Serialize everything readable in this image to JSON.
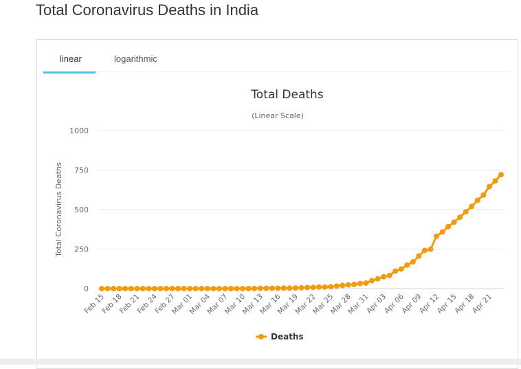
{
  "page_title": "Total Coronavirus Deaths in India",
  "tabs": [
    "linear",
    "logarithmic"
  ],
  "chart_data": {
    "type": "line",
    "title": "Total Deaths",
    "subtitle": "(Linear Scale)",
    "y_label": "Total Coronavirus Deaths",
    "categories": [
      "Feb 15",
      null,
      null,
      "Feb 18",
      null,
      null,
      "Feb 21",
      null,
      null,
      "Feb 24",
      null,
      null,
      "Feb 27",
      null,
      null,
      "Mar 01",
      null,
      null,
      "Mar 04",
      null,
      null,
      "Mar 07",
      null,
      null,
      "Mar 10",
      null,
      null,
      "Mar 13",
      null,
      null,
      "Mar 16",
      null,
      null,
      "Mar 19",
      null,
      null,
      "Mar 22",
      null,
      null,
      "Mar 25",
      null,
      null,
      "Mar 28",
      null,
      null,
      "Mar 31",
      null,
      null,
      "Apr 03",
      null,
      null,
      "Apr 06",
      null,
      null,
      "Apr 09",
      null,
      null,
      "Apr 12",
      null,
      null,
      "Apr 15",
      null,
      null,
      "Apr 18",
      null,
      null,
      "Apr 21",
      null,
      null
    ],
    "series": [
      {
        "name": "Deaths",
        "color": "#f59a0c",
        "values": [
          0,
          0,
          0,
          0,
          0,
          0,
          0,
          0,
          0,
          0,
          0,
          0,
          0,
          0,
          0,
          0,
          0,
          0,
          0,
          0,
          0,
          0,
          0,
          0,
          0,
          0,
          1,
          2,
          2,
          2,
          2,
          3,
          3,
          4,
          5,
          7,
          8,
          10,
          10,
          12,
          16,
          20,
          24,
          27,
          32,
          35,
          50,
          62,
          75,
          83,
          111,
          124,
          149,
          169,
          206,
          242,
          249,
          331,
          358,
          392,
          420,
          452,
          486,
          520,
          559,
          592,
          645,
          681,
          721
        ]
      }
    ],
    "ylim": [
      0,
      1000
    ],
    "yticks": [
      0,
      250,
      500,
      750,
      1000
    ],
    "grid": true,
    "legend": "bottom"
  }
}
